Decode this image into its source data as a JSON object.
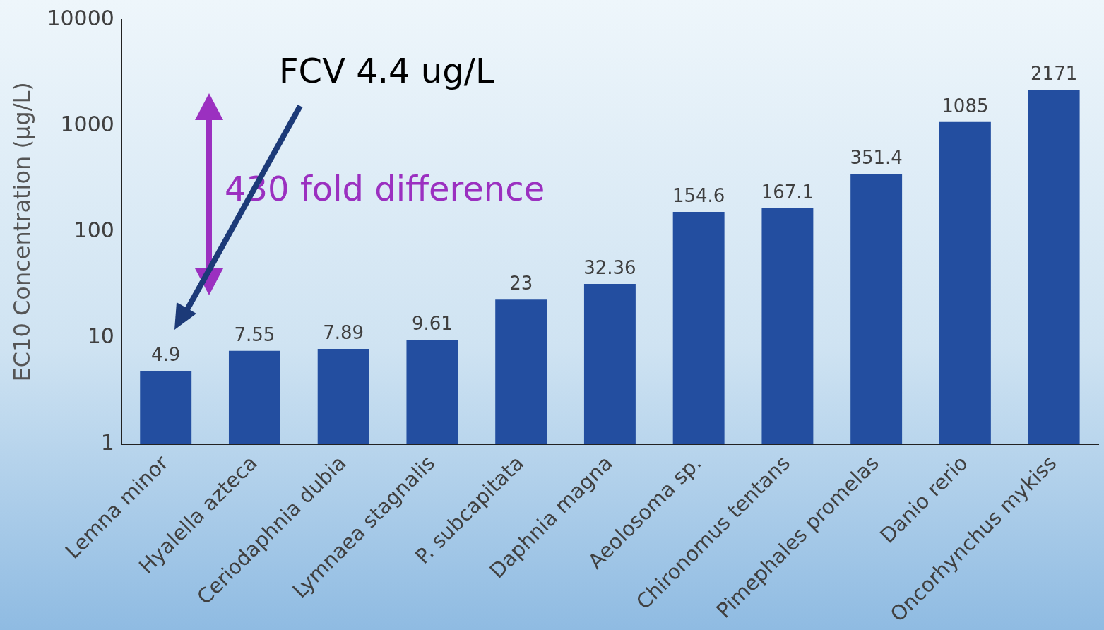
{
  "chart_data": {
    "type": "bar",
    "ylabel": "EC10 Concentration (µg/L)",
    "categories": [
      "Lemna minor",
      "Hyalella azteca",
      "Ceriodaphnia dubia",
      "Lymnaea stagnalis",
      "P. subcapitata",
      "Daphnia magna",
      "Aeolosoma sp.",
      "Chironomus tentans",
      "Pimephales promelas",
      "Danio rerio",
      "Oncorhynchus mykiss"
    ],
    "values": [
      4.9,
      7.55,
      7.89,
      9.61,
      23,
      32.36,
      154.6,
      167.1,
      351.4,
      1085,
      2171
    ],
    "color": "#234ea0",
    "log": true,
    "ylim": [
      1,
      10000
    ],
    "yticks": [
      1,
      10,
      100,
      1000,
      10000
    ],
    "grid": "y",
    "data_labels": true,
    "legend": false,
    "annotations": [
      "FCV 4.4 ug/L",
      "430 fold difference"
    ]
  }
}
